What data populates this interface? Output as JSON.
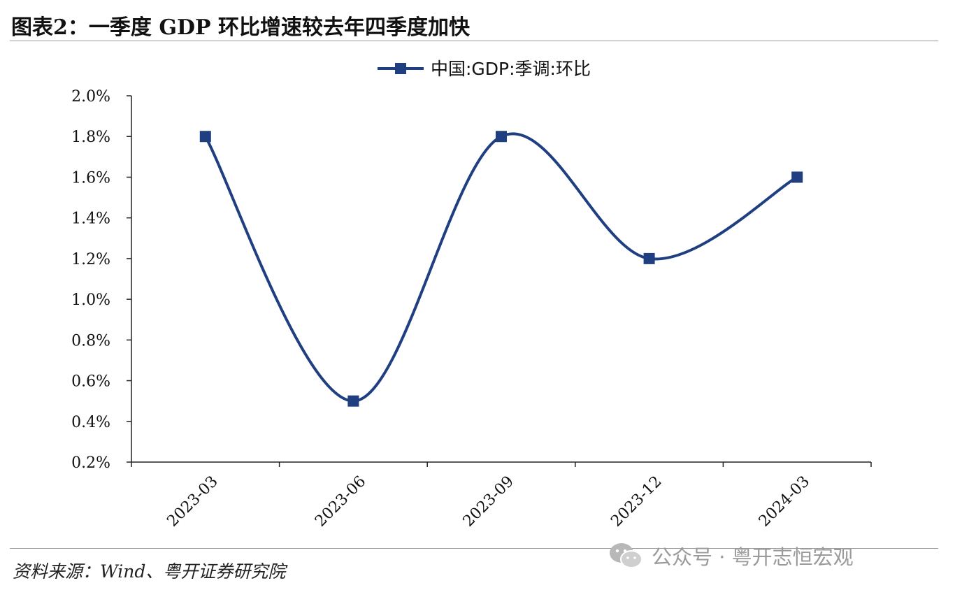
{
  "header": {
    "title": "图表2：一季度 GDP 环比增速较去年四季度加快"
  },
  "footer": {
    "source": "资料来源：Wind、粤开证券研究院",
    "watermark": "公众号 · 粤开志恒宏观"
  },
  "chart_data": {
    "type": "line",
    "x": [
      "2023-03",
      "2023-06",
      "2023-09",
      "2023-12",
      "2024-03"
    ],
    "series": [
      {
        "name": "中国:GDP:季调:环比",
        "values": [
          1.8,
          0.5,
          1.8,
          1.2,
          1.6
        ],
        "color": "#1f3f80"
      }
    ],
    "ylim": [
      0.2,
      2.0
    ],
    "yticks": [
      "2.0%",
      "1.8%",
      "1.6%",
      "1.4%",
      "1.2%",
      "1.0%",
      "0.8%",
      "0.6%",
      "0.4%",
      "0.2%"
    ],
    "ytick_values": [
      2.0,
      1.8,
      1.6,
      1.4,
      1.2,
      1.0,
      0.8,
      0.6,
      0.4,
      0.2
    ],
    "legend": "top-center",
    "grid": false,
    "smooth": true,
    "marker": "square"
  }
}
